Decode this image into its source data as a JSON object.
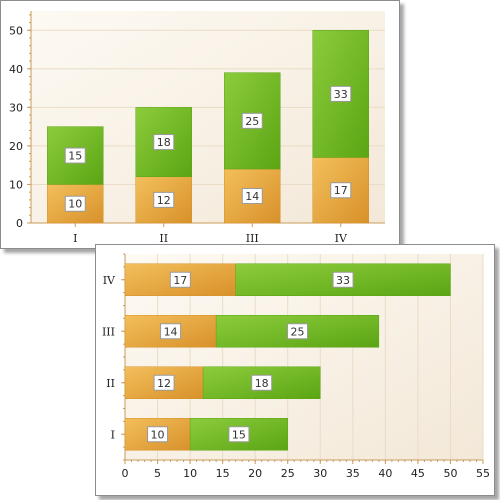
{
  "colors": {
    "background_light": "#fdfaf3",
    "background_dark": "#f3e8d8",
    "gridline": "#eadcc6",
    "axis": "#c89b5a",
    "series1_light": "#f3bf5c",
    "series1_dark": "#d8912a",
    "series2_light": "#8ccc3c",
    "series2_dark": "#5ba514"
  },
  "chart_data": [
    {
      "type": "bar",
      "orientation": "vertical",
      "stacked": true,
      "categories": [
        "I",
        "II",
        "III",
        "IV"
      ],
      "series": [
        {
          "values": [
            10,
            12,
            14,
            17
          ]
        },
        {
          "values": [
            15,
            18,
            25,
            33
          ]
        }
      ],
      "ylim": [
        0,
        55
      ],
      "yticks": [
        0,
        10,
        20,
        30,
        40,
        50
      ],
      "grid": true,
      "legend": "none",
      "title": "",
      "xlabel": "",
      "ylabel": ""
    },
    {
      "type": "bar",
      "orientation": "horizontal",
      "stacked": true,
      "categories": [
        "I",
        "II",
        "III",
        "IV"
      ],
      "series": [
        {
          "values": [
            10,
            12,
            14,
            17
          ]
        },
        {
          "values": [
            15,
            18,
            25,
            33
          ]
        }
      ],
      "xlim": [
        0,
        55
      ],
      "xticks": [
        0,
        5,
        10,
        15,
        20,
        25,
        30,
        35,
        40,
        45,
        50,
        55
      ],
      "grid": true,
      "legend": "none",
      "title": "",
      "xlabel": "",
      "ylabel": ""
    }
  ]
}
